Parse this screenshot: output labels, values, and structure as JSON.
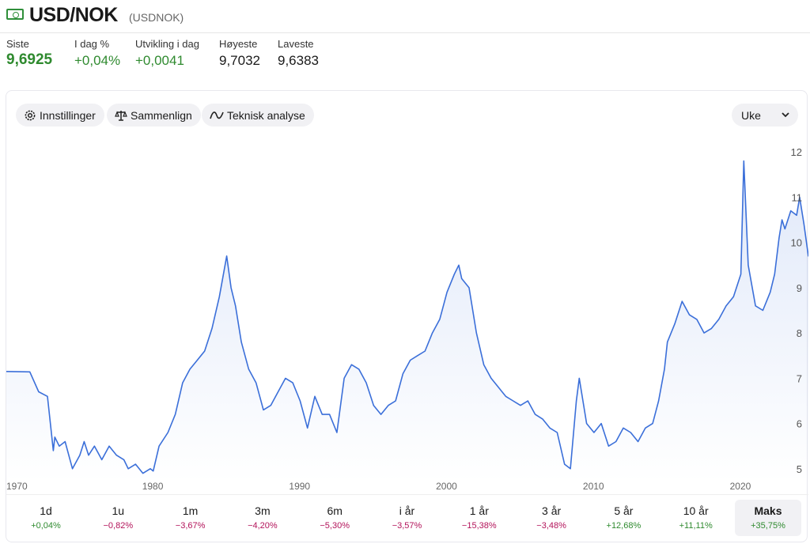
{
  "header": {
    "title": "USD/NOK",
    "subtitle": "(USDNOK)",
    "flag_icon": "banknote-icon"
  },
  "stats": [
    {
      "label": "Siste",
      "value": "9,6925"
    },
    {
      "label": "I dag %",
      "value": "+0,04%"
    },
    {
      "label": "Utvikling i dag",
      "value": "+0,0041"
    },
    {
      "label": "Høyeste",
      "value": "9,7032"
    },
    {
      "label": "Laveste",
      "value": "9,6383"
    }
  ],
  "toolbar": {
    "settings_label": "Innstillinger",
    "compare_label": "Sammenlign",
    "technical_label": "Teknisk analyse",
    "interval_value": "Uke"
  },
  "periods": [
    {
      "label": "1d",
      "change": "+0,04%"
    },
    {
      "label": "1u",
      "change": "−0,82%"
    },
    {
      "label": "1m",
      "change": "−3,67%"
    },
    {
      "label": "3m",
      "change": "−4,20%"
    },
    {
      "label": "6m",
      "change": "−5,30%"
    },
    {
      "label": "i år",
      "change": "−3,57%"
    },
    {
      "label": "1 år",
      "change": "−15,38%"
    },
    {
      "label": "3 år",
      "change": "−3,48%"
    },
    {
      "label": "5 år",
      "change": "+12,68%"
    },
    {
      "label": "10 år",
      "change": "+11,11%"
    },
    {
      "label": "Maks",
      "change": "+35,75%"
    }
  ],
  "colors": {
    "line": "#3b6fd9",
    "positive": "#2f8a2f",
    "negative": "#b3135a"
  },
  "chart_data": {
    "type": "area",
    "title": "",
    "xlabel": "",
    "ylabel": "",
    "x_ticks": [
      "1970",
      "1980",
      "1990",
      "2000",
      "2010",
      "2020"
    ],
    "y_ticks": [
      "5",
      "6",
      "7",
      "8",
      "9",
      "10",
      "11",
      "12"
    ],
    "xlim": [
      1970,
      2024.6
    ],
    "ylim": [
      4.7,
      12.3
    ],
    "grid": false,
    "x": [
      1970.0,
      1971.6,
      1972.2,
      1972.8,
      1973.2,
      1973.3,
      1973.6,
      1974.0,
      1974.5,
      1975.0,
      1975.3,
      1975.6,
      1976.0,
      1976.5,
      1977.0,
      1977.5,
      1978.0,
      1978.3,
      1978.8,
      1979.3,
      1979.8,
      1980.0,
      1980.4,
      1981.0,
      1981.5,
      1982.0,
      1982.5,
      1983.0,
      1983.5,
      1984.0,
      1984.5,
      1985.0,
      1985.3,
      1985.6,
      1986.0,
      1986.5,
      1987.0,
      1987.5,
      1988.0,
      1988.5,
      1989.0,
      1989.5,
      1990.0,
      1990.5,
      1991.0,
      1991.5,
      1992.0,
      1992.5,
      1993.0,
      1993.5,
      1994.0,
      1994.5,
      1995.0,
      1995.5,
      1996.0,
      1996.5,
      1997.0,
      1997.5,
      1998.0,
      1998.5,
      1999.0,
      1999.5,
      2000.0,
      2000.5,
      2000.8,
      2001.0,
      2001.5,
      2002.0,
      2002.5,
      2003.0,
      2003.5,
      2004.0,
      2004.5,
      2005.0,
      2005.5,
      2006.0,
      2006.5,
      2007.0,
      2007.5,
      2008.0,
      2008.4,
      2008.8,
      2009.0,
      2009.5,
      2010.0,
      2010.5,
      2011.0,
      2011.5,
      2012.0,
      2012.5,
      2013.0,
      2013.5,
      2014.0,
      2014.4,
      2014.8,
      2015.0,
      2015.5,
      2016.0,
      2016.5,
      2017.0,
      2017.5,
      2018.0,
      2018.5,
      2019.0,
      2019.5,
      2020.0,
      2020.2,
      2020.5,
      2021.0,
      2021.5,
      2022.0,
      2022.3,
      2022.6,
      2022.8,
      2023.0,
      2023.4,
      2023.8,
      2024.0,
      2024.3,
      2024.6
    ],
    "values": [
      7.15,
      7.14,
      6.7,
      6.6,
      5.4,
      5.7,
      5.5,
      5.6,
      5.0,
      5.3,
      5.6,
      5.3,
      5.5,
      5.2,
      5.5,
      5.3,
      5.2,
      5.0,
      5.1,
      4.9,
      5.0,
      4.95,
      5.5,
      5.8,
      6.2,
      6.9,
      7.2,
      7.4,
      7.6,
      8.1,
      8.8,
      9.7,
      9.0,
      8.6,
      7.8,
      7.2,
      6.9,
      6.3,
      6.4,
      6.7,
      7.0,
      6.9,
      6.5,
      5.9,
      6.6,
      6.2,
      6.2,
      5.8,
      7.0,
      7.3,
      7.2,
      6.9,
      6.4,
      6.2,
      6.4,
      6.5,
      7.1,
      7.4,
      7.5,
      7.6,
      8.0,
      8.3,
      8.9,
      9.3,
      9.5,
      9.2,
      9.0,
      8.0,
      7.3,
      7.0,
      6.8,
      6.6,
      6.5,
      6.4,
      6.5,
      6.2,
      6.1,
      5.9,
      5.8,
      5.1,
      5.0,
      6.5,
      7.0,
      6.0,
      5.8,
      6.0,
      5.5,
      5.6,
      5.9,
      5.8,
      5.6,
      5.9,
      6.0,
      6.5,
      7.2,
      7.8,
      8.2,
      8.7,
      8.4,
      8.3,
      8.0,
      8.1,
      8.3,
      8.6,
      8.8,
      9.3,
      11.8,
      9.5,
      8.6,
      8.5,
      8.9,
      9.3,
      10.1,
      10.5,
      10.3,
      10.7,
      10.6,
      11.0,
      10.4,
      9.69
    ]
  }
}
